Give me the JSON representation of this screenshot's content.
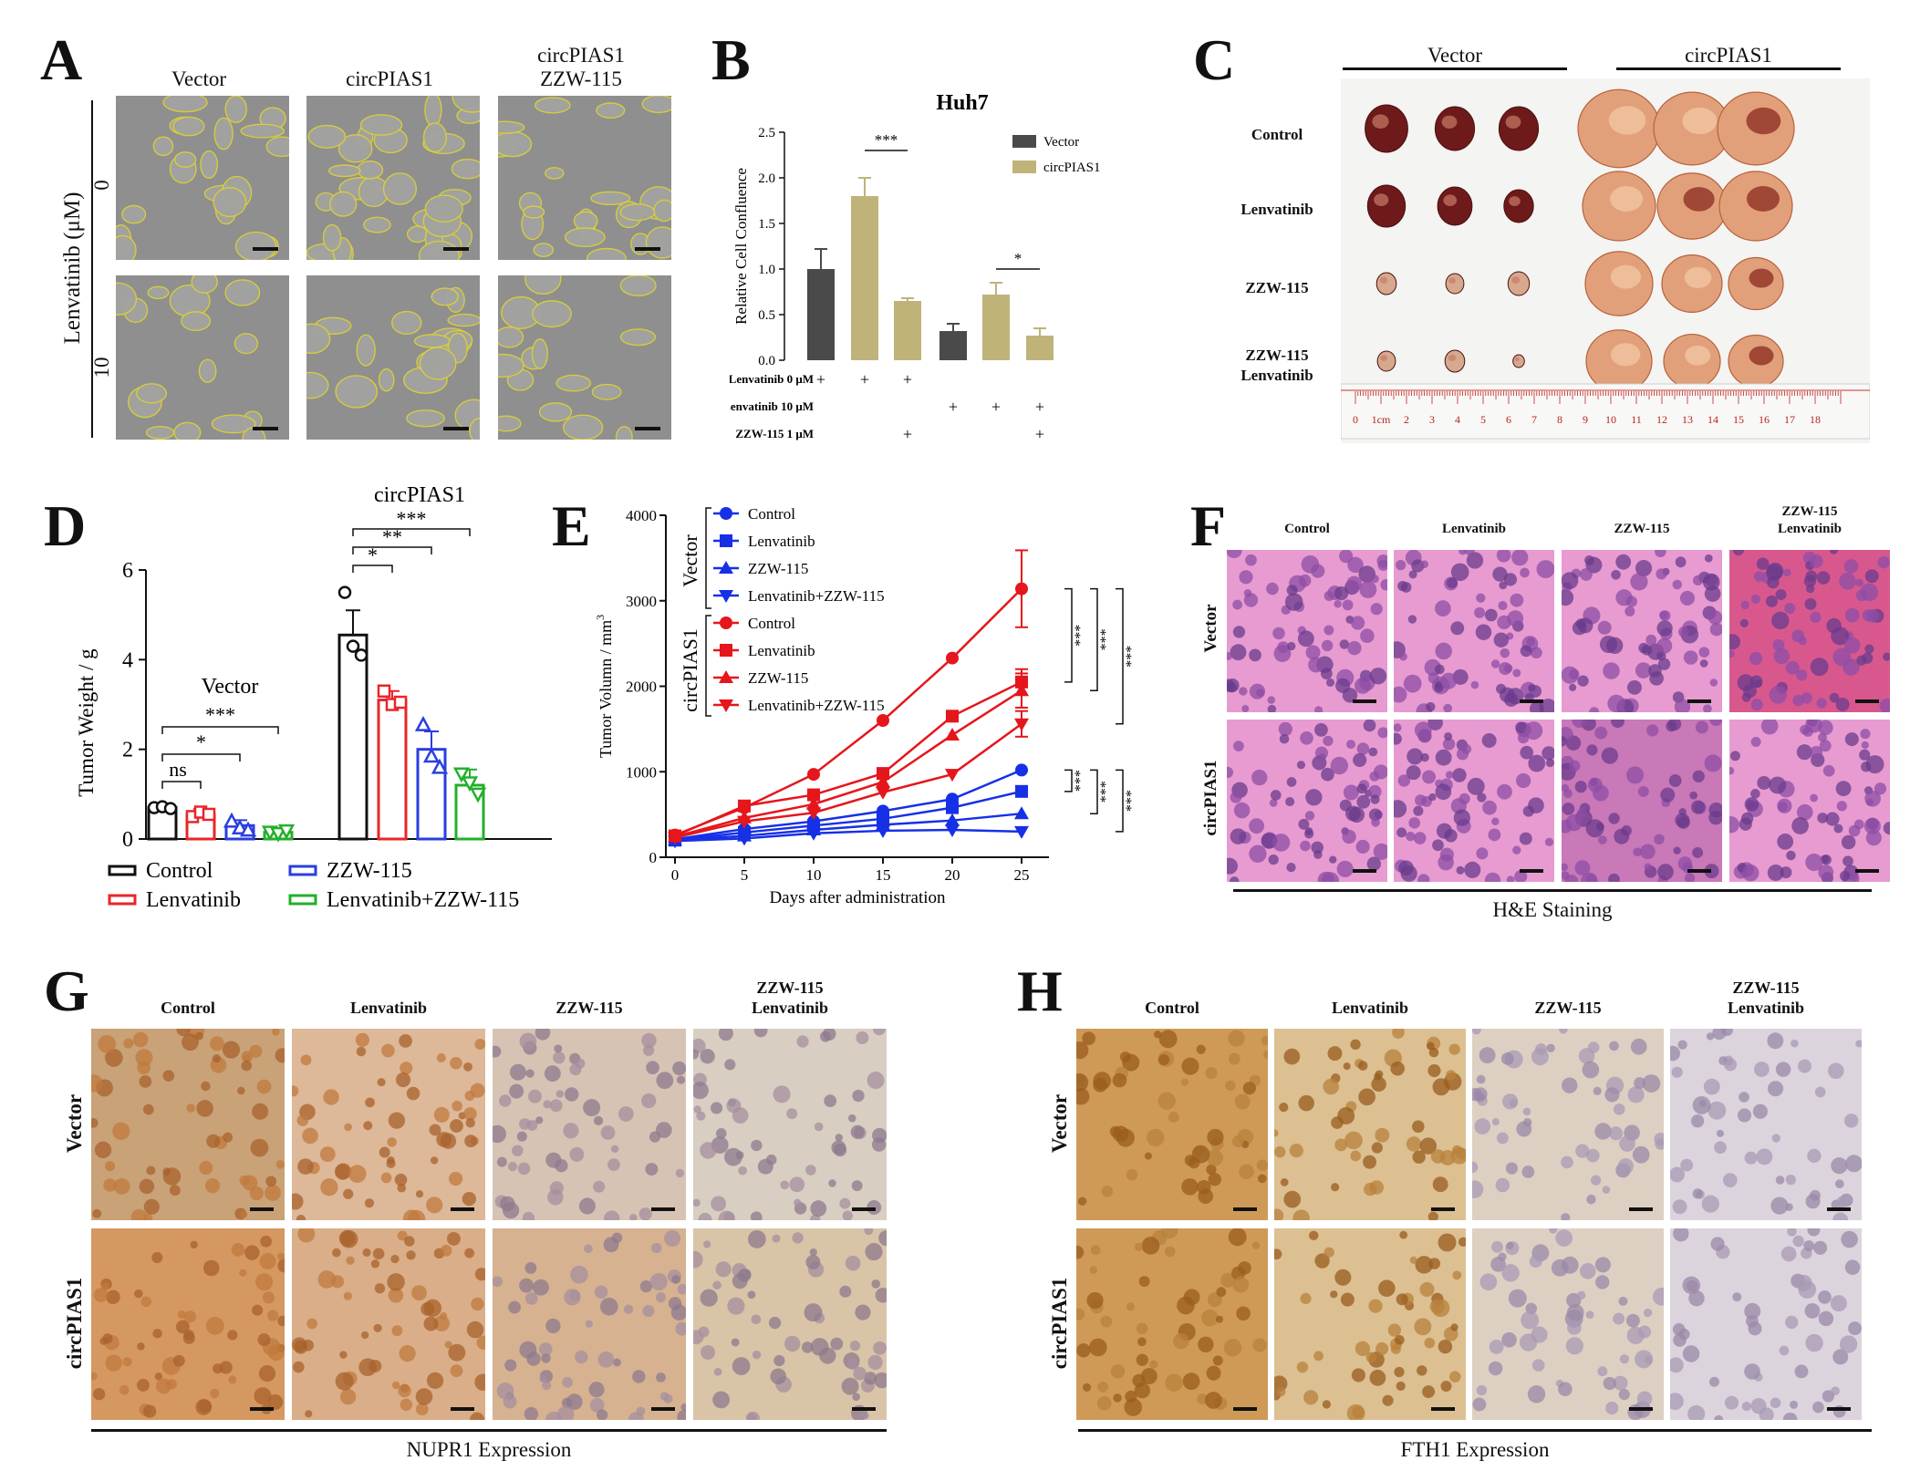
{
  "panels": {
    "A": {
      "letter": "A",
      "columns": [
        "Vector",
        "circPIAS1",
        "circPIAS1\nZZW-115"
      ],
      "col3_line1": "circPIAS1",
      "col3_line2": "ZZW-115",
      "axis_title": "Lenvatinib (μM)",
      "rows": [
        "0",
        "10"
      ]
    },
    "B": {
      "letter": "B"
    },
    "C": {
      "letter": "C",
      "groups": [
        "Vector",
        "circPIAS1"
      ],
      "rows": [
        "Control",
        "Lenvatinib",
        "ZZW-115"
      ],
      "row4_line1": "ZZW-115",
      "row4_line2": "Lenvatinib",
      "ruler_ticks": [
        "0",
        "1cm",
        "2",
        "3",
        "4",
        "5",
        "6",
        "7",
        "8",
        "9",
        "10",
        "11",
        "12",
        "13",
        "14",
        "15",
        "16",
        "17",
        "18"
      ]
    },
    "D": {
      "letter": "D"
    },
    "E": {
      "letter": "E"
    },
    "F": {
      "letter": "F",
      "columns": [
        "Control",
        "Lenvatinib",
        "ZZW-115"
      ],
      "col4_line1": "ZZW-115",
      "col4_line2": "Lenvatinib",
      "rows": [
        "Vector",
        "circPIAS1"
      ],
      "caption": "H&E Staining"
    },
    "G": {
      "letter": "G",
      "columns": [
        "Control",
        "Lenvatinib",
        "ZZW-115"
      ],
      "col4_line1": "ZZW-115",
      "col4_line2": "Lenvatinib",
      "rows": [
        "Vector",
        "circPIAS1"
      ],
      "caption": "NUPR1 Expression"
    },
    "H": {
      "letter": "H",
      "columns": [
        "Control",
        "Lenvatinib",
        "ZZW-115"
      ],
      "col4_line1": "ZZW-115",
      "col4_line2": "Lenvatinib",
      "rows": [
        "Vector",
        "circPIAS1"
      ],
      "caption": "FTH1 Expression"
    }
  },
  "colors": {
    "vector_bar": "#4a4a4a",
    "circ_bar": "#bfb37a",
    "control": "#111111",
    "lenvatinib": "#e8262a",
    "zzw115": "#2a3ee0",
    "combo": "#22b02a",
    "vector_line": "#1630e6",
    "circ_line": "#e5161c",
    "he": "#e88cc4",
    "ihc": "#d9a36c"
  },
  "chart_data": [
    {
      "id": "B",
      "type": "bar",
      "title": "Huh7",
      "ylabel": "Relative Cell Confluence",
      "ylim": [
        0,
        2.5
      ],
      "yticks": [
        "0.0",
        "0.5",
        "1.0",
        "1.5",
        "2.0",
        "2.5"
      ],
      "legend": [
        "Vector",
        "circPIAS1"
      ],
      "legend_position": "top-right",
      "bars": [
        {
          "series": "Vector",
          "value": 1.0,
          "error": 0.22
        },
        {
          "series": "circPIAS1",
          "value": 1.8,
          "error": 0.2
        },
        {
          "series": "circPIAS1",
          "value": 0.65,
          "error": 0.03
        },
        {
          "series": "Vector",
          "value": 0.32,
          "error": 0.08
        },
        {
          "series": "circPIAS1",
          "value": 0.72,
          "error": 0.13
        },
        {
          "series": "circPIAS1",
          "value": 0.27,
          "error": 0.08
        }
      ],
      "condition_rows": [
        {
          "label": "Lenvatinib 0 μM",
          "marks": [
            "+",
            "+",
            "+",
            "",
            "",
            ""
          ]
        },
        {
          "label": "Lenvatinib 10 μM",
          "marks": [
            "",
            "",
            "",
            "+",
            "+",
            "+"
          ]
        },
        {
          "label": "ZZW-115 1 μM",
          "marks": [
            "",
            "",
            "+",
            "",
            "",
            "+"
          ]
        }
      ],
      "annotations": [
        {
          "from": 1,
          "to": 2,
          "text": "***"
        },
        {
          "from": 4,
          "to": 5,
          "text": "*"
        }
      ]
    },
    {
      "id": "D",
      "type": "bar",
      "ylabel": "Tumor Weight / g",
      "ylim": [
        0,
        6
      ],
      "yticks": [
        "0",
        "2",
        "4",
        "6"
      ],
      "group_labels": [
        "Vector",
        "circPIAS1"
      ],
      "legend": [
        "Control",
        "Lenvatinib",
        "ZZW-115",
        "Lenvatinib+ZZW-115"
      ],
      "legend_position": "bottom",
      "groups": [
        {
          "name": "Vector",
          "values": [
            0.7,
            0.55,
            0.3,
            0.15
          ],
          "errors": [
            0.05,
            0.12,
            0.12,
            0.06
          ],
          "points": [
            [
              0.7,
              0.72,
              0.68
            ],
            [
              0.5,
              0.6,
              0.55
            ],
            [
              0.4,
              0.25,
              0.2
            ],
            [
              0.15,
              0.12,
              0.18
            ]
          ]
        },
        {
          "name": "circPIAS1",
          "values": [
            4.55,
            3.1,
            2.0,
            1.2
          ],
          "errors": [
            0.55,
            0.2,
            0.4,
            0.35
          ],
          "points": [
            [
              5.5,
              4.3,
              4.1
            ],
            [
              3.3,
              3.0,
              3.05
            ],
            [
              2.55,
              1.85,
              1.6
            ],
            [
              1.45,
              1.25,
              1.0
            ]
          ]
        }
      ],
      "annotations_vector": [
        {
          "text": "ns"
        },
        {
          "text": "*"
        },
        {
          "text": "***"
        }
      ],
      "annotations_circ": [
        {
          "text": "*"
        },
        {
          "text": "**"
        },
        {
          "text": "***"
        }
      ]
    },
    {
      "id": "E",
      "type": "line",
      "xlabel": "Days after administration",
      "ylabel": "Tumor Volumn / mm",
      "ylabel_sup": "3",
      "x": [
        0,
        5,
        10,
        15,
        20,
        25
      ],
      "xticks": [
        "0",
        "5",
        "10",
        "15",
        "20",
        "25"
      ],
      "ylim": [
        0,
        4000
      ],
      "yticks": [
        "0",
        "1000",
        "2000",
        "3000",
        "4000"
      ],
      "group_labels": [
        "Vector",
        "circPIAS1"
      ],
      "series": [
        {
          "name": "Control",
          "group": "Vector",
          "marker": "circle",
          "values": [
            210,
            330,
            420,
            540,
            680,
            1020
          ]
        },
        {
          "name": "Lenvatinib",
          "group": "Vector",
          "marker": "square",
          "values": [
            200,
            290,
            370,
            450,
            580,
            770
          ]
        },
        {
          "name": "ZZW-115",
          "group": "Vector",
          "marker": "triangle-up",
          "values": [
            200,
            250,
            320,
            380,
            430,
            510
          ]
        },
        {
          "name": "Lenvatinib+ZZW-115",
          "group": "Vector",
          "marker": "triangle-down",
          "values": [
            190,
            220,
            280,
            310,
            320,
            300
          ]
        },
        {
          "name": "Control",
          "group": "circPIAS1",
          "marker": "circle",
          "values": [
            260,
            580,
            970,
            1600,
            2330,
            3140
          ]
        },
        {
          "name": "Lenvatinib",
          "group": "circPIAS1",
          "marker": "square",
          "values": [
            250,
            600,
            730,
            980,
            1650,
            2050
          ]
        },
        {
          "name": "ZZW-115",
          "group": "circPIAS1",
          "marker": "triangle-up",
          "values": [
            240,
            460,
            620,
            880,
            1430,
            1950
          ]
        },
        {
          "name": "Lenvatinib+ZZW-115",
          "group": "circPIAS1",
          "marker": "triangle-down",
          "values": [
            230,
            420,
            520,
            760,
            970,
            1560
          ]
        }
      ],
      "annotations": [
        "***",
        "***",
        "***",
        "***",
        "***",
        "***"
      ]
    }
  ]
}
